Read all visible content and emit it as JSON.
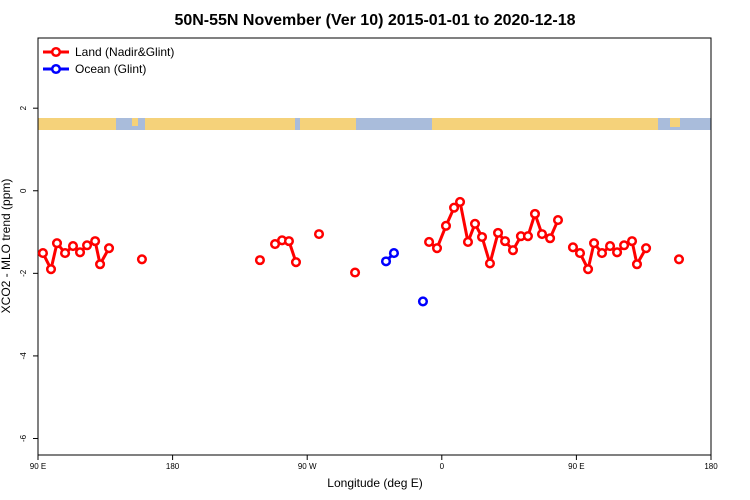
{
  "chart_data": {
    "type": "line",
    "title": "50N-55N November (Ver 10)   2015-01-01 to 2020-12-18",
    "x_label": "Longitude (deg E)",
    "y_label": "XCO2 - MLO trend (ppm)",
    "xlim": [
      90,
      540
    ],
    "ylim": [
      -6.4,
      3.7
    ],
    "xticks": [
      {
        "value": 90,
        "label": "90 E"
      },
      180,
      {
        "value": 270,
        "label": "90 W"
      },
      {
        "value": 360,
        "label": "0"
      },
      {
        "value": 450,
        "label": "90 E"
      },
      {
        "value": 540,
        "label": "180"
      }
    ],
    "yticks": [
      2,
      0,
      -2,
      -4,
      -6
    ],
    "legend_position": "top-left",
    "series": [
      {
        "name": "Land (Nadir&Glint)",
        "color": "#ff0000",
        "x": [
          93.3,
          98.7,
          102.7,
          108.1,
          113.4,
          118.1,
          122.8,
          128.2,
          131.5,
          137.5,
          null,
          159.5,
          null,
          238.4,
          null,
          248.5,
          253.2,
          257.8,
          262.5,
          null,
          277.9,
          null,
          302,
          null,
          351.5,
          356.8,
          362.8,
          368.2,
          372.2,
          377.5,
          382.2,
          386.9,
          392.2,
          397.6,
          402.3,
          407.6,
          412.9,
          417.6,
          422.3,
          427,
          432.4,
          437.7,
          null,
          447.7,
          452.4,
          457.8,
          461.8,
          467.1,
          472.5,
          477.2,
          481.9,
          487.2,
          490.5,
          496.6,
          null,
          518.6
        ],
        "values": [
          -1.51,
          -1.9,
          -1.27,
          -1.51,
          -1.34,
          -1.49,
          -1.32,
          -1.22,
          -1.78,
          -1.39,
          null,
          -1.66,
          null,
          -1.68,
          null,
          -1.29,
          -1.2,
          -1.22,
          -1.73,
          null,
          -1.05,
          null,
          -1.98,
          null,
          -1.24,
          -1.39,
          -0.85,
          -0.41,
          -0.27,
          -1.24,
          -0.8,
          -1.12,
          -1.76,
          -1.02,
          -1.22,
          -1.44,
          -1.1,
          -1.1,
          -0.56,
          -1.05,
          -1.15,
          -0.71,
          null,
          -1.37,
          -1.51,
          -1.9,
          -1.27,
          -1.51,
          -1.34,
          -1.49,
          -1.32,
          -1.22,
          -1.78,
          -1.39,
          null,
          -1.66
        ]
      },
      {
        "name": "Ocean (Glint)",
        "color": "#0000ff",
        "x": [
          322.7,
          328,
          null,
          347.4
        ],
        "values": [
          -1.71,
          -1.51,
          null,
          -2.68
        ]
      }
    ]
  }
}
